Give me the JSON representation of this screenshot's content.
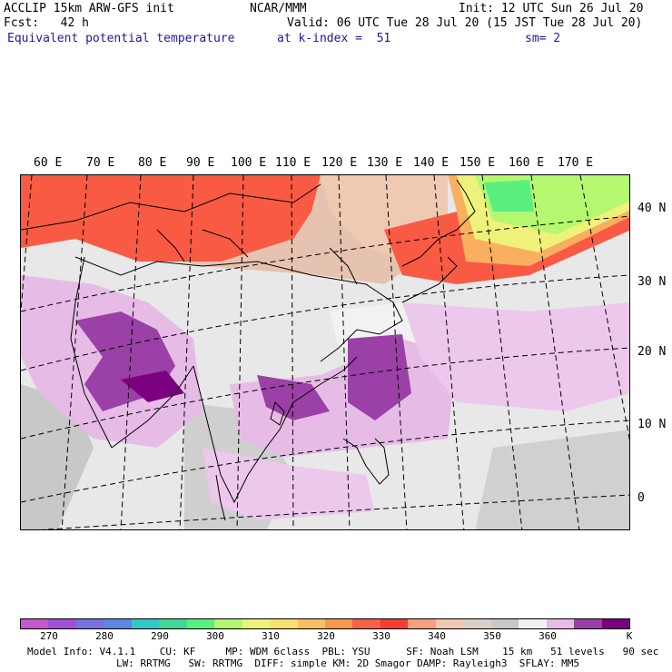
{
  "header": {
    "line1_left": "ACCLIP 15km ARW-GFS init",
    "line1_center": "NCAR/MMM",
    "line1_right": "Init: 12 UTC Sun 26 Jul 20",
    "line2_left": "Fcst:   42 h",
    "line2_right": "Valid: 06 UTC Tue 28 Jul 20 (15 JST Tue 28 Jul 20)",
    "field": "Equivalent potential temperature",
    "level": "at k-index =  51",
    "smooth": "sm= 2"
  },
  "map": {
    "lon_labels": [
      "60 E",
      "70 E",
      "80 E",
      "90 E",
      "100 E",
      "110 E",
      "120 E",
      "130 E",
      "140 E",
      "150 E",
      "160 E",
      "170 E"
    ],
    "lat_labels": [
      "40 N",
      "30 N",
      "20 N",
      "10 N",
      "0"
    ]
  },
  "colorbar": {
    "colors": [
      "#c558d0",
      "#a050d6",
      "#7a70e0",
      "#5a88e8",
      "#30c8c8",
      "#40d898",
      "#5af080",
      "#b4f870",
      "#eef27a",
      "#f8e070",
      "#f8c060",
      "#f89850",
      "#f86048",
      "#f83c30",
      "#f8a080",
      "#f0c8b0",
      "#d8d0c8",
      "#c8c8c8",
      "#f0f0f0",
      "#e6bce6",
      "#9a40a6",
      "#7a0080"
    ],
    "ticks": [
      "270",
      "280",
      "290",
      "300",
      "310",
      "320",
      "330",
      "340",
      "350",
      "360"
    ],
    "unit": "K"
  },
  "footer": {
    "line1": "Model Info: V4.1.1    CU: KF     MP: WDM 6class  PBL: YSU      SF: Noah LSM    15 km   51 levels   90 sec",
    "line2": "LW: RRTMG   SW: RRTMG  DIFF: simple KM: 2D Smagor DAMP: Rayleigh3  SFLAY: MM5"
  }
}
